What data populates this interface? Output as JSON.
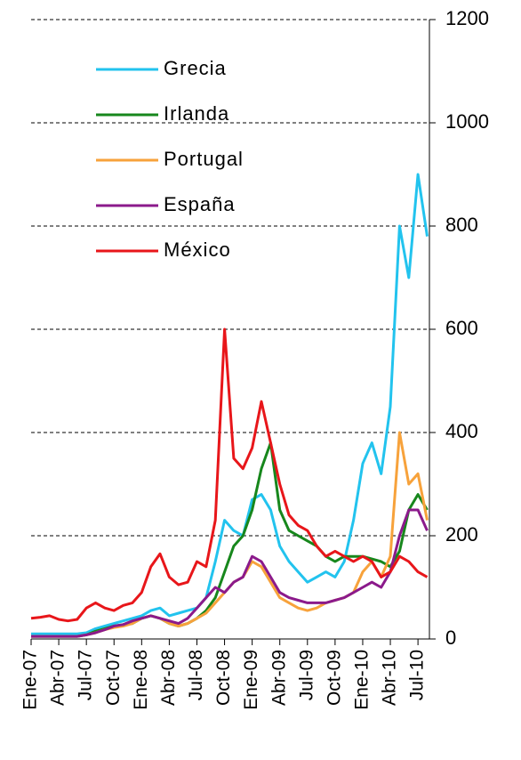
{
  "chart_data": {
    "type": "line",
    "categories": [
      "Ene-07",
      null,
      null,
      "Abr-07",
      null,
      null,
      "Jul-07",
      null,
      null,
      "Oct-07",
      null,
      null,
      "Ene-08",
      null,
      null,
      "Abr-08",
      null,
      null,
      "Jul-08",
      null,
      null,
      "Oct-08",
      null,
      null,
      "Ene-09",
      null,
      null,
      "Abr-09",
      null,
      null,
      "Jul-09",
      null,
      null,
      "Oct-09",
      null,
      null,
      "Ene-10",
      null,
      null,
      "Abr-10",
      null,
      null,
      "Jul-10",
      null
    ],
    "series": [
      {
        "name": "Grecia",
        "color": "#22c3ee",
        "values": [
          10,
          10,
          10,
          10,
          10,
          10,
          12,
          20,
          25,
          30,
          35,
          40,
          45,
          55,
          60,
          45,
          50,
          55,
          60,
          80,
          150,
          230,
          210,
          200,
          270,
          280,
          250,
          180,
          150,
          130,
          110,
          120,
          130,
          120,
          150,
          230,
          340,
          380,
          320,
          450,
          800,
          700,
          900,
          780
        ]
      },
      {
        "name": "Irlanda",
        "color": "#17871c",
        "values": [
          5,
          5,
          5,
          5,
          5,
          5,
          8,
          15,
          20,
          25,
          28,
          30,
          40,
          45,
          40,
          30,
          25,
          30,
          40,
          55,
          80,
          130,
          180,
          200,
          250,
          330,
          380,
          250,
          210,
          200,
          190,
          180,
          160,
          150,
          160,
          160,
          160,
          155,
          150,
          140,
          170,
          250,
          280,
          250
        ]
      },
      {
        "name": "Portugal",
        "color": "#f7a23b",
        "values": [
          5,
          5,
          5,
          5,
          5,
          5,
          8,
          12,
          18,
          22,
          25,
          30,
          40,
          45,
          40,
          30,
          25,
          30,
          40,
          50,
          70,
          90,
          110,
          120,
          150,
          140,
          110,
          80,
          70,
          60,
          55,
          60,
          70,
          75,
          80,
          90,
          130,
          150,
          120,
          160,
          400,
          300,
          320,
          230
        ]
      },
      {
        "name": "España",
        "color": "#8b1a8b",
        "values": [
          5,
          5,
          5,
          5,
          5,
          5,
          8,
          12,
          18,
          25,
          28,
          35,
          40,
          45,
          40,
          35,
          30,
          40,
          60,
          80,
          100,
          90,
          110,
          120,
          160,
          150,
          120,
          90,
          80,
          75,
          70,
          70,
          70,
          75,
          80,
          90,
          100,
          110,
          100,
          130,
          200,
          250,
          250,
          210
        ]
      },
      {
        "name": "México",
        "color": "#e8161a",
        "values": [
          40,
          42,
          45,
          38,
          35,
          38,
          60,
          70,
          60,
          55,
          65,
          70,
          90,
          140,
          165,
          120,
          105,
          110,
          150,
          140,
          230,
          600,
          350,
          330,
          370,
          460,
          380,
          300,
          240,
          220,
          210,
          180,
          160,
          170,
          160,
          150,
          160,
          150,
          120,
          130,
          160,
          150,
          130,
          120
        ]
      }
    ],
    "ylim": [
      0,
      1200
    ],
    "yticks": [
      0,
      200,
      400,
      600,
      800,
      1000,
      1200
    ],
    "grid": true
  }
}
